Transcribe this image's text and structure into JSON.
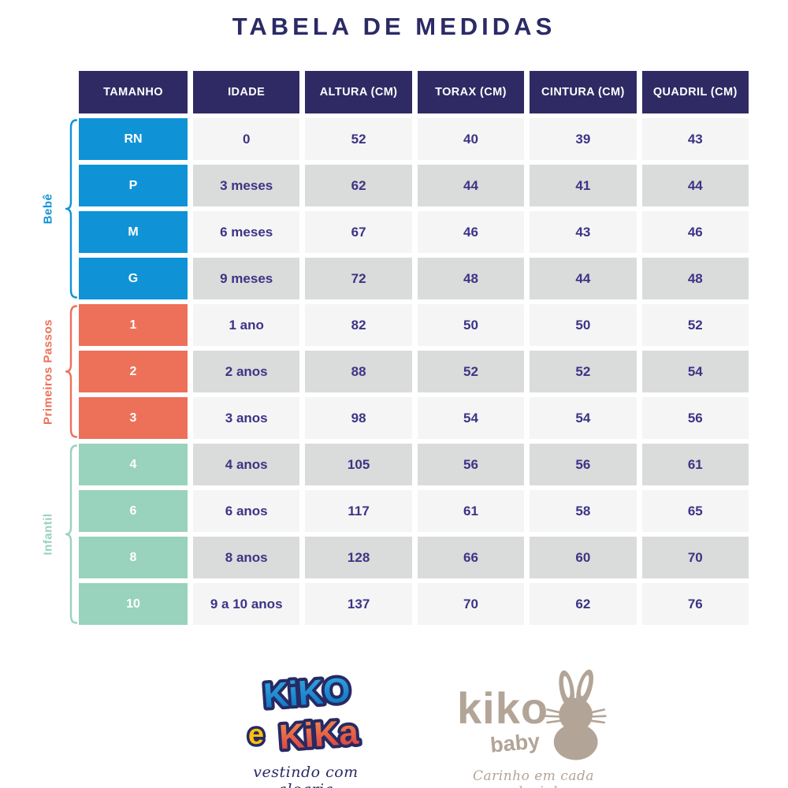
{
  "title": "TABELA DE MEDIDAS",
  "table": {
    "headers": [
      "TAMANHO",
      "IDADE",
      "ALTURA (CM)",
      "TORAX (CM)",
      "CINTURA (CM)",
      "QUADRIL (CM)"
    ],
    "groups": [
      {
        "label": "Bebê",
        "color": "#0f93d6",
        "rows": [
          {
            "size": "RN",
            "age": "0",
            "height": "52",
            "chest": "40",
            "waist": "39",
            "hip": "43"
          },
          {
            "size": "P",
            "age": "3 meses",
            "height": "62",
            "chest": "44",
            "waist": "41",
            "hip": "44"
          },
          {
            "size": "M",
            "age": "6 meses",
            "height": "67",
            "chest": "46",
            "waist": "43",
            "hip": "46"
          },
          {
            "size": "G",
            "age": "9 meses",
            "height": "72",
            "chest": "48",
            "waist": "44",
            "hip": "48"
          }
        ]
      },
      {
        "label": "Primeiros Passos",
        "color": "#ed7058",
        "rows": [
          {
            "size": "1",
            "age": "1 ano",
            "height": "82",
            "chest": "50",
            "waist": "50",
            "hip": "52"
          },
          {
            "size": "2",
            "age": "2 anos",
            "height": "88",
            "chest": "52",
            "waist": "52",
            "hip": "54"
          },
          {
            "size": "3",
            "age": "3 anos",
            "height": "98",
            "chest": "54",
            "waist": "54",
            "hip": "56"
          }
        ]
      },
      {
        "label": "Infantil",
        "color": "#99d2bd",
        "rows": [
          {
            "size": "4",
            "age": "4 anos",
            "height": "105",
            "chest": "56",
            "waist": "56",
            "hip": "61"
          },
          {
            "size": "6",
            "age": "6 anos",
            "height": "117",
            "chest": "61",
            "waist": "58",
            "hip": "65"
          },
          {
            "size": "8",
            "age": "8 anos",
            "height": "128",
            "chest": "66",
            "waist": "60",
            "hip": "70"
          },
          {
            "size": "10",
            "age": "9 a 10 anos",
            "height": "137",
            "chest": "70",
            "waist": "62",
            "hip": "76"
          }
        ]
      }
    ]
  },
  "footer": {
    "logo_left": {
      "line1": "KiKO",
      "e": "e",
      "line2": "KiKa",
      "tagline": "vestindo com alegria"
    },
    "logo_right": {
      "name": "kiko",
      "sub": "baby",
      "tagline": "Carinho em cada pedacinho"
    }
  },
  "colors": {
    "header_bg": "#302a64",
    "cell_text": "#3c3484",
    "row_light": "#f5f5f6",
    "row_dark": "#dadbdb",
    "group_bebe": "#0f93d6",
    "group_primeiros_passos": "#ed7058",
    "group_infantil": "#99d2bd",
    "title": "#2b2a66",
    "kiko_baby_taupe": "#b2a496",
    "logo_yellow": "#ffc20e",
    "logo_blue_top": "#36aae2",
    "logo_blue_bottom": "#0b6fc0",
    "logo_red_top": "#f0924d",
    "logo_red_bottom": "#dc3540",
    "logo_outline": "#272a63"
  }
}
